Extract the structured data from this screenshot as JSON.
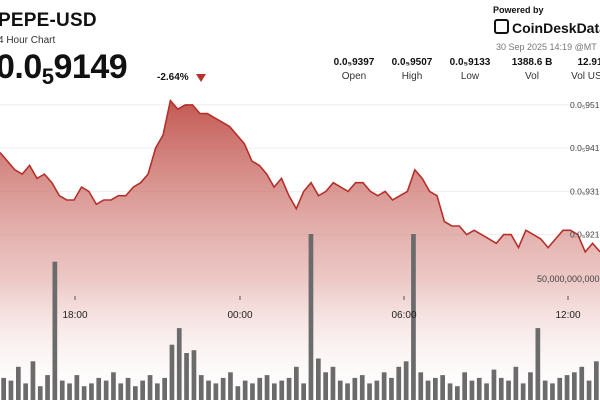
{
  "header": {
    "pair": "PEPE-USD",
    "subtitle": "4 Hour Chart",
    "price_main": "0.0",
    "price_sub": "5",
    "price_tail": "9149",
    "change": "-2.64%",
    "change_color": "#b5302a"
  },
  "branding": {
    "powered_by": "Powered by",
    "brand": "CoinDeskData",
    "timestamp": "30 Sep 2025 14:19 @MT"
  },
  "stats": [
    {
      "value": "0.0₅9397",
      "label": "Open"
    },
    {
      "value": "0.0₅9507",
      "label": "High"
    },
    {
      "value": "0.0₅9133",
      "label": "Low"
    },
    {
      "value": "1388.6 B",
      "label": "Vol"
    },
    {
      "value": "12.91",
      "label": "Vol USD"
    }
  ],
  "chart_data": {
    "type": "area",
    "title": "PEPE-USD",
    "subtitle": "4 Hour Chart",
    "xlabel": "",
    "ylabel": "",
    "x_ticks": [
      "18:00",
      "00:00",
      "06:00",
      "12:00"
    ],
    "y_ticks": [
      {
        "value": 9.51e-06,
        "label": "0.0₅951"
      },
      {
        "value": 9.41e-06,
        "label": "0.0₅941"
      },
      {
        "value": 9.31e-06,
        "label": "0.0₅931"
      },
      {
        "value": 9.21e-06,
        "label": "0.0₅921"
      }
    ],
    "ylim": [
      9.105e-06,
      9.526e-06
    ],
    "colors": {
      "line": "#b5302a",
      "fill_top": "#c0504a",
      "fill_bottom": "#ffffff",
      "volume": "#6b6b6b"
    },
    "price_series": {
      "name": "",
      "values": [
        9.4e-06,
        9.38e-06,
        9.36e-06,
        9.35e-06,
        9.37e-06,
        9.34e-06,
        9.35e-06,
        9.33e-06,
        9.3e-06,
        9.29e-06,
        9.29e-06,
        9.32e-06,
        9.31e-06,
        9.28e-06,
        9.29e-06,
        9.29e-06,
        9.3e-06,
        9.3e-06,
        9.32e-06,
        9.33e-06,
        9.35e-06,
        9.41e-06,
        9.44e-06,
        9.52e-06,
        9.5e-06,
        9.51e-06,
        9.51e-06,
        9.49e-06,
        9.49e-06,
        9.48e-06,
        9.47e-06,
        9.46e-06,
        9.44e-06,
        9.42e-06,
        9.38e-06,
        9.37e-06,
        9.35e-06,
        9.32e-06,
        9.34e-06,
        9.3e-06,
        9.27e-06,
        9.31e-06,
        9.33e-06,
        9.3e-06,
        9.31e-06,
        9.33e-06,
        9.32e-06,
        9.31e-06,
        9.33e-06,
        9.33e-06,
        9.31e-06,
        9.3e-06,
        9.31e-06,
        9.29e-06,
        9.3e-06,
        9.31e-06,
        9.36e-06,
        9.34e-06,
        9.31e-06,
        9.3e-06,
        9.24e-06,
        9.23e-06,
        9.23e-06,
        9.21e-06,
        9.22e-06,
        9.21e-06,
        9.2e-06,
        9.19e-06,
        9.21e-06,
        9.21e-06,
        9.18e-06,
        9.22e-06,
        9.21e-06,
        9.2e-06,
        9.18e-06,
        9.2e-06,
        9.22e-06,
        9.22e-06,
        9.21e-06,
        9.17e-06,
        9.19e-06,
        9.17e-06
      ]
    },
    "volume_series": {
      "name": "",
      "values": [
        8000000000.0,
        7000000000.0,
        12000000000.0,
        6000000000.0,
        14000000000.0,
        5000000000.0,
        9000000000.0,
        50000000000.0,
        7000000000.0,
        6000000000.0,
        9000000000.0,
        5000000000.0,
        6000000000.0,
        8000000000.0,
        7000000000.0,
        10000000000.0,
        6000000000.0,
        8000000000.0,
        5000000000.0,
        7000000000.0,
        9000000000.0,
        6000000000.0,
        8000000000.0,
        20000000000.0,
        26000000000.0,
        17000000000.0,
        18000000000.0,
        9000000000.0,
        7000000000.0,
        6000000000.0,
        8000000000.0,
        10000000000.0,
        5000000000.0,
        7000000000.0,
        6000000000.0,
        8000000000.0,
        9000000000.0,
        6000000000.0,
        7000000000.0,
        8000000000.0,
        12000000000.0,
        6000000000.0,
        60000000000.0,
        15000000000.0,
        10000000000.0,
        12000000000.0,
        7000000000.0,
        6000000000.0,
        8000000000.0,
        9000000000.0,
        6000000000.0,
        7000000000.0,
        10000000000.0,
        8000000000.0,
        12000000000.0,
        14000000000.0,
        60000000000.0,
        10000000000.0,
        7000000000.0,
        8000000000.0,
        9000000000.0,
        6000000000.0,
        5000000000.0,
        10000000000.0,
        7000000000.0,
        8000000000.0,
        6000000000.0,
        11000000000.0,
        8000000000.0,
        7000000000.0,
        12000000000.0,
        6000000000.0,
        10000000000.0,
        26000000000.0,
        7000000000.0,
        6000000000.0,
        8000000000.0,
        9000000000.0,
        10000000000.0,
        12000000000.0,
        7000000000.0,
        14000000000.0
      ],
      "reference_label": "50,000,000,000"
    }
  }
}
